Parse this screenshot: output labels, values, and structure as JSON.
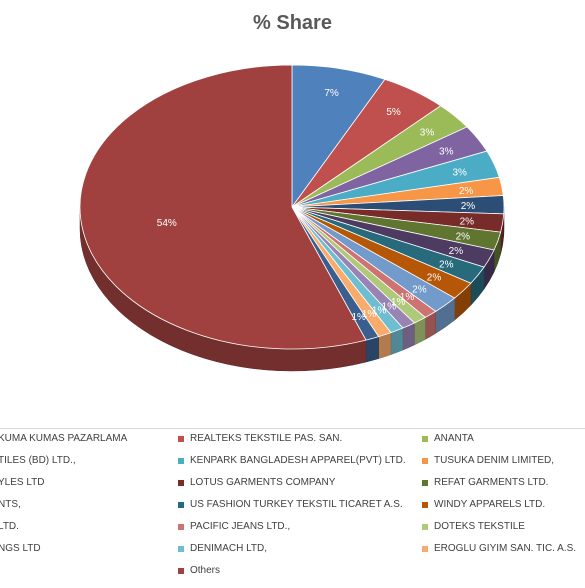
{
  "chart_data": {
    "type": "pie",
    "title": "% Share",
    "legend_position": "bottom",
    "series": [
      {
        "name": "",
        "value": 7,
        "label": "7%",
        "color": "#4f81bd"
      },
      {
        "name": "REALTEKS TEKSTILE PAS. SAN.",
        "value": 5,
        "label": "5%",
        "color": "#c0504d"
      },
      {
        "name": "ANANTA",
        "value": 3,
        "label": "3%",
        "color": "#9bbb59"
      },
      {
        "name": "",
        "value": 3,
        "label": "3%",
        "color": "#8064a2"
      },
      {
        "name": "KENPARK BANGLADESH APPAREL(PVT) LTD.",
        "value": 3,
        "label": "3%",
        "color": "#4bacc6"
      },
      {
        "name": "TUSUKA DENIM LIMITED,",
        "value": 2,
        "label": "2%",
        "color": "#f79646"
      },
      {
        "name": "",
        "value": 2,
        "label": "2%",
        "color": "#2c4d75"
      },
      {
        "name": "LOTUS GARMENTS COMPANY",
        "value": 2,
        "label": "2%",
        "color": "#772c2a"
      },
      {
        "name": "REFAT GARMENTS LTD.",
        "value": 2,
        "label": "2%",
        "color": "#5f7530"
      },
      {
        "name": "",
        "value": 2,
        "label": "2%",
        "color": "#4d3b62"
      },
      {
        "name": "US FASHION TURKEY TEKSTIL TICARET A.S.",
        "value": 2,
        "label": "2%",
        "color": "#276a7c"
      },
      {
        "name": "WINDY APPARELS LTD.",
        "value": 2,
        "label": "2%",
        "color": "#b65708"
      },
      {
        "name": "",
        "value": 2,
        "label": "2%",
        "color": "#729aca"
      },
      {
        "name": "PACIFIC JEANS LTD.,",
        "value": 1,
        "label": "1%",
        "color": "#cd7371"
      },
      {
        "name": "DOTEKS TEKSTILE",
        "value": 1,
        "label": "1%",
        "color": "#afc97a"
      },
      {
        "name": "",
        "value": 1,
        "label": "1%",
        "color": "#9983b5"
      },
      {
        "name": "DENIMACH LTD,",
        "value": 1,
        "label": "1%",
        "color": "#6fbdd1"
      },
      {
        "name": "EROGLU GIYIM SAN. TIC. A.S.",
        "value": 1,
        "label": "1%",
        "color": "#f9ab6b"
      },
      {
        "name": "",
        "value": 1,
        "label": "1%",
        "color": "#3a5f8e"
      },
      {
        "name": "Others",
        "value": 54,
        "label": "54%",
        "color": "#a0413f"
      }
    ]
  },
  "legend": {
    "rows": [
      [
        {
          "label": "KUMA KUMAS PAZARLAMA",
          "color": "#4f81bd"
        },
        {
          "label": "REALTEKS TEKSTILE PAS. SAN.",
          "color": "#c0504d"
        },
        {
          "label": "ANANTA",
          "color": "#9bbb59"
        }
      ],
      [
        {
          "label": "TILES (BD) LTD.,",
          "color": "#8064a2"
        },
        {
          "label": "KENPARK BANGLADESH APPAREL(PVT) LTD.",
          "color": "#4bacc6"
        },
        {
          "label": "TUSUKA DENIM LIMITED,",
          "color": "#f79646"
        }
      ],
      [
        {
          "label": "YLES LTD",
          "color": "#2c4d75"
        },
        {
          "label": "LOTUS GARMENTS COMPANY",
          "color": "#772c2a"
        },
        {
          "label": "REFAT GARMENTS LTD.",
          "color": "#5f7530"
        }
      ],
      [
        {
          "label": "NTS,",
          "color": "#4d3b62"
        },
        {
          "label": "US FASHION TURKEY TEKSTIL TICARET A.S.",
          "color": "#276a7c"
        },
        {
          "label": "WINDY APPARELS LTD.",
          "color": "#b65708"
        }
      ],
      [
        {
          "label": "LTD.",
          "color": "#729aca"
        },
        {
          "label": "PACIFIC JEANS LTD.,",
          "color": "#cd7371"
        },
        {
          "label": "DOTEKS TEKSTILE",
          "color": "#afc97a"
        }
      ],
      [
        {
          "label": "NGS LTD",
          "color": "#9983b5"
        },
        {
          "label": "DENIMACH LTD,",
          "color": "#6fbdd1"
        },
        {
          "label": "EROGLU GIYIM SAN. TIC. A.S.",
          "color": "#f9ab6b"
        }
      ],
      [
        {
          "label": ".",
          "color": "#3a5f8e"
        },
        {
          "label": "Others",
          "color": "#a0413f"
        }
      ]
    ]
  }
}
